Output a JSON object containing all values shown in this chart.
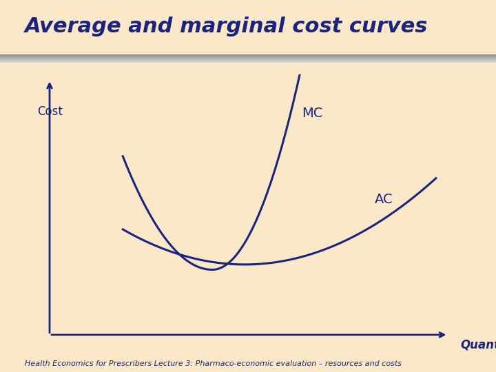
{
  "title": "Average and marginal cost curves",
  "title_color": "#1a237e",
  "title_fontsize": 22,
  "title_fontstyle": "italic",
  "title_fontweight": "bold",
  "background_color": "#fae8c8",
  "curve_color": "#1a237e",
  "curve_linewidth": 2.2,
  "cost_label": "Cost",
  "quantity_label": "Quantity",
  "mc_label": "MC",
  "ac_label": "AC",
  "label_fontsize": 13,
  "axis_label_fontsize": 12,
  "footer_text": "Health Economics for Prescribers Lecture 3: Pharmaco-economic evaluation – resources and costs",
  "footer_fontsize": 8,
  "footer_color": "#1a237e",
  "divider_color_top": "#a0a0a0",
  "divider_color_bottom": "#c8b898"
}
